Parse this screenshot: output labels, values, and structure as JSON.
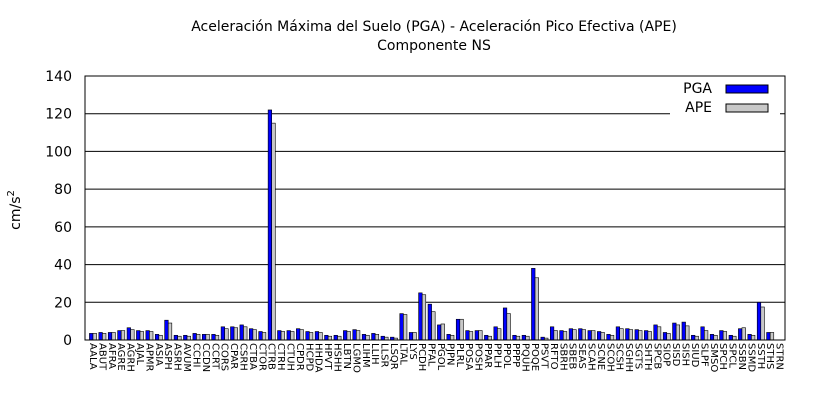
{
  "chart_data": {
    "type": "bar",
    "title": "Aceleración Máxima del Suelo (PGA) -  Aceleración Pico Efectiva (APE)",
    "subtitle": "Componente NS",
    "xlabel": "",
    "ylabel": "cm/s",
    "ylabel_sup": "2",
    "ylim": [
      0,
      140
    ],
    "yticks": [
      "0",
      "20",
      "40",
      "60",
      "80",
      "100",
      "120",
      "140"
    ],
    "grid": "horizontal",
    "legend_position": "top-right",
    "colors": {
      "PGA": "#0000ff",
      "APE": "#c8c8c8"
    },
    "categories": [
      "AALA",
      "ABUT",
      "AFRA",
      "AGRE",
      "AGRH",
      "AJAL",
      "APMR",
      "ASIA",
      "ASPH",
      "ASRH",
      "AVUM",
      "CCHI",
      "CCDN",
      "CCRT",
      "CORS",
      "CPAR",
      "CSRH",
      "CTBA",
      "CTOR",
      "CTRB",
      "CTRH",
      "CTUH",
      "CPDR",
      "HCPD",
      "HHDA",
      "HPVT",
      "HSHH",
      "LBTN",
      "LGMO",
      "LIHM",
      "LLIH",
      "LLSR",
      "LSQR",
      "LTAL",
      "LYS",
      "PCDH",
      "PFAL",
      "PGOL",
      "PJPN",
      "PLRL",
      "POSA",
      "POSH",
      "PPAR",
      "PPLH",
      "PPOL",
      "PPPP",
      "PQUH",
      "POQE",
      "PSVT",
      "RFTO",
      "SBRH",
      "SBEB",
      "SEAS",
      "SCAH",
      "SCNE",
      "SCOH",
      "SCSH",
      "SGHH",
      "SGTS",
      "SHTH",
      "SPCB",
      "SIOP",
      "SISD",
      "SISH",
      "SIUD",
      "SLPF",
      "SMSO",
      "SPCH",
      "SPCL",
      "SSBN",
      "SSMD",
      "SSTH",
      "STHS",
      "STRN"
    ],
    "series": [
      {
        "name": "PGA",
        "values": [
          3.5,
          4,
          4,
          5,
          6.5,
          5,
          5,
          3,
          10.5,
          2.5,
          2.5,
          3.5,
          3,
          3,
          7,
          7,
          8,
          6,
          4.5,
          122,
          5,
          5,
          6,
          4.5,
          4.5,
          2.5,
          2.5,
          5,
          5.5,
          3,
          3.5,
          2,
          1.5,
          14,
          4,
          25,
          19,
          8,
          3,
          11,
          5,
          5,
          2.5,
          7,
          17,
          2.5,
          2.5,
          38,
          1.5,
          7,
          5,
          6,
          6,
          5,
          4.5,
          3,
          7,
          6,
          5.5,
          5,
          8,
          4,
          9,
          9.5,
          2.5,
          7,
          3,
          5,
          2.5,
          6,
          3,
          20,
          4,
          0
        ]
      },
      {
        "name": "APE",
        "values": [
          3.5,
          3.5,
          4,
          5,
          5.5,
          4.5,
          4.5,
          2.5,
          9,
          2,
          2,
          3,
          3,
          2.5,
          6,
          6.5,
          7,
          5.5,
          4,
          115,
          4.5,
          4.5,
          5.5,
          4,
          4,
          2,
          2,
          4.5,
          5,
          2.5,
          3,
          1.5,
          1,
          13.5,
          4,
          24,
          15,
          8.5,
          2.5,
          11,
          4.5,
          5,
          2,
          6,
          14,
          2,
          2,
          33,
          1,
          5,
          4.5,
          5.5,
          5.5,
          5,
          4,
          2.5,
          6,
          5.5,
          5,
          4.5,
          7,
          3.5,
          8,
          7.5,
          2,
          5,
          2.5,
          4.5,
          2,
          6.5,
          2.5,
          17.5,
          4,
          0
        ]
      }
    ]
  }
}
